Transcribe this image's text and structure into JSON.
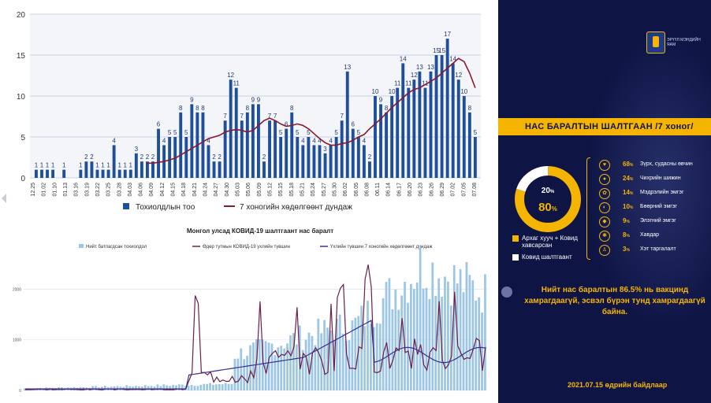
{
  "chart1": {
    "y_ticks": [
      "0",
      "5",
      "10",
      "15",
      "20"
    ],
    "ylim": [
      0,
      20
    ],
    "legend": {
      "bars": "Тохиолдлын тоо",
      "line": "7 хоногийн хөдөлгөөнт дундаж"
    },
    "x_labels": [
      "12.25",
      "01.02",
      "01.10",
      "01.13",
      "03.16",
      "03.19",
      "03.22",
      "03.25",
      "03.28",
      "04.03",
      "04.06",
      "04.09",
      "04.12",
      "04.15",
      "04.18",
      "04.21",
      "04.24",
      "04.27",
      "04.30",
      "05.03",
      "05.06",
      "05.09",
      "05.12",
      "05.15",
      "05.18",
      "05.21",
      "05.24",
      "05.27",
      "05.30",
      "06.02",
      "06.05",
      "06.08",
      "06.11",
      "06.14",
      "06.17",
      "06.20",
      "06.23",
      "06.26",
      "06.29",
      "07.02",
      "07.05",
      "07.08"
    ],
    "colors": {
      "bar": "#1f4e9a",
      "line": "#8b1a2b"
    }
  },
  "chart_data": {
    "type": "bar",
    "title": "",
    "xlabel": "",
    "ylabel": "",
    "ylim": [
      0,
      20
    ],
    "grid": true,
    "legend_placement": "bottom",
    "series": [
      {
        "name": "Тохиолдлын тоо",
        "values": [
          1,
          1,
          1,
          1,
          0,
          1,
          0,
          0,
          1,
          2,
          2,
          1,
          1,
          1,
          4,
          1,
          1,
          1,
          3,
          2,
          2,
          2,
          6,
          4,
          5,
          5,
          8,
          5,
          9,
          8,
          8,
          4,
          2,
          2,
          7,
          12,
          11,
          7,
          8,
          9,
          9,
          2,
          7,
          7,
          5,
          6,
          8,
          5,
          4,
          5,
          4,
          4,
          3,
          4,
          5,
          7,
          13,
          6,
          5,
          4,
          2,
          10,
          9,
          8,
          10,
          11,
          14,
          11,
          12,
          13,
          11,
          13,
          15,
          15,
          17,
          14,
          12,
          10,
          8,
          5
        ]
      },
      {
        "name": "7 хоногийн хөдөлгөөнт дундаж",
        "values": [
          1.8,
          1.8,
          1.9,
          2.0,
          2.2,
          2.4,
          2.8,
          3.2,
          3.6,
          4.0,
          4.4,
          4.8,
          5.0,
          5.2,
          5.6,
          5.8,
          5.9,
          5.8,
          5.6,
          5.8,
          6.4,
          7.0,
          7.3,
          7.0,
          6.6,
          6.3,
          6.4,
          6.6,
          6.4,
          6.0,
          5.4,
          4.8,
          4.3,
          4.0,
          4.0,
          4.2,
          4.3,
          4.6,
          5.0,
          5.3,
          6.0,
          6.6,
          7.2,
          7.9,
          8.6,
          9.2,
          9.8,
          10.4,
          10.8,
          11.0,
          11.4,
          11.8,
          12.2,
          12.8,
          13.4,
          14.0,
          14.6,
          14.2,
          12.8,
          11.0
        ]
      }
    ]
  },
  "chart2": {
    "title": "Монгол улсад КОВИД-19 шалтгаант нас баралт",
    "legend": [
      "Нийт батлагдсан тохиолдол",
      "Өдөр тутмын КОВИД-19 үхлийн түвшин",
      "Үхлийн түвшин 7 хоногийн хөдөлгөөнт дундаж"
    ],
    "y_ticks": [
      "0",
      "1000",
      "2000"
    ],
    "colors": {
      "bar": "#9cc6e4",
      "daily": "#6b1f4a",
      "avg": "#3a2f8f"
    }
  },
  "panel": {
    "logo_text": "ЭРҮҮЛ МЭНДИЙН ЯАМ",
    "banner": "НАС БАРАЛТЫН ШАЛТГААН /7 хоног/",
    "donut": {
      "inner_pct": "20",
      "main_pct": "80",
      "sign": "%",
      "segments": [
        80,
        20
      ],
      "colors": [
        "#f5b400",
        "#ffffff"
      ]
    },
    "legend": [
      {
        "label": "Архаг хууч + Ковид хавсарсан",
        "color": "#f5b400"
      },
      {
        "label": "Ковид шалтгаант",
        "color": "#ffffff"
      }
    ],
    "causes": [
      {
        "pct": "68",
        "label": "Зүрх, судасны өвчин",
        "icon": "heart-icon"
      },
      {
        "pct": "24",
        "label": "Чихрийн шижин",
        "icon": "drop-icon"
      },
      {
        "pct": "14",
        "label": "Мэдрэлийн эмгэг",
        "icon": "brain-icon"
      },
      {
        "pct": "10",
        "label": "Бөөрний эмгэг",
        "icon": "kidney-icon"
      },
      {
        "pct": "9",
        "label": "Элэгний эмгэг",
        "icon": "liver-icon"
      },
      {
        "pct": "8",
        "label": "Хавдар",
        "icon": "cell-icon"
      },
      {
        "pct": "3",
        "label": "Хэт таргалалт",
        "icon": "person-icon"
      }
    ],
    "note": "Нийт нас баралтын 86.5% нь вакцинд хамрагдаагүй, эсвэл бүрэн тунд хамрагдаагүй байна.",
    "date": "2021.07.15 өдрийн байдлаар"
  }
}
